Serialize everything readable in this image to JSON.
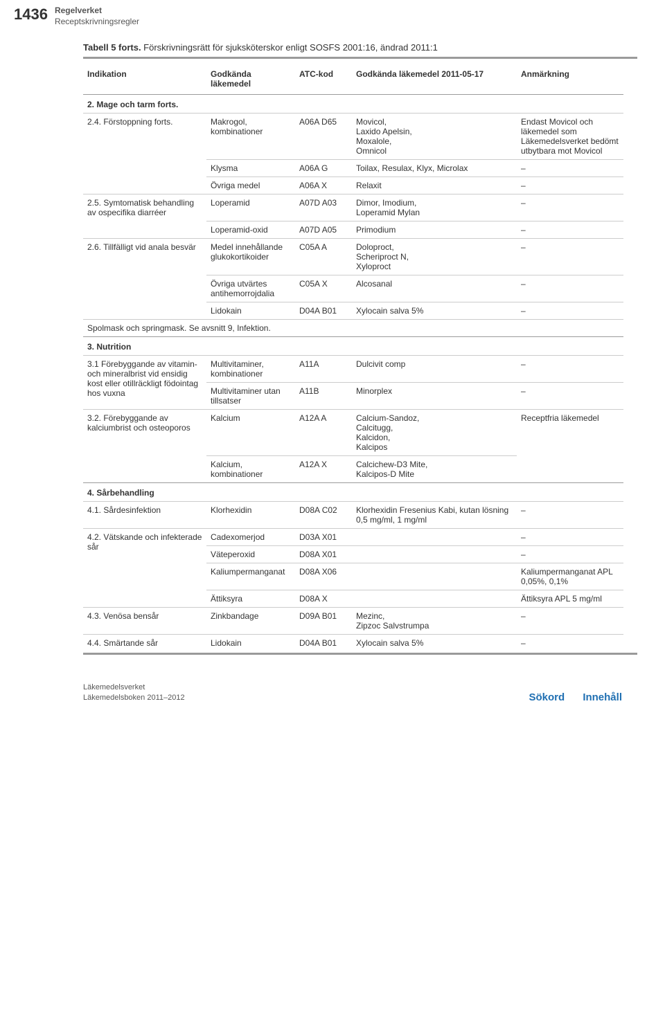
{
  "page_number": "1436",
  "header_bold": "Regelverket",
  "header_sub": "Receptskrivningsregler",
  "table_title": "Tabell 5 forts.",
  "table_subtitle": " Förskrivningsrätt för sjuksköterskor enligt SOSFS 2001:16, ändrad 2011:1",
  "columns": {
    "c1": "Indikation",
    "c2": "Godkända läkemedel",
    "c3": "ATC-kod",
    "c4": "Godkända läkemedel 2011-05-17",
    "c5": "Anmärkning"
  },
  "section_2": "2. Mage och tarm forts.",
  "r1": {
    "ind": "2.4. Förstoppning forts.",
    "med": "Makrogol, kombinationer",
    "atc": "A06A D65",
    "god": "Movicol,\nLaxido Apelsin,\nMoxalole,\nOmnicol",
    "anm": "Endast Movicol och läkemedel som Läkemedelsverket bedömt utbytbara mot Movicol"
  },
  "r2": {
    "med": "Klysma",
    "atc": "A06A G",
    "god": "Toilax, Resulax, Klyx, Microlax",
    "anm": "–"
  },
  "r3": {
    "med": "Övriga medel",
    "atc": "A06A X",
    "god": "Relaxit",
    "anm": "–"
  },
  "r4": {
    "ind": "2.5. Symtomatisk behandling av ospecifika diarréer",
    "med": "Loperamid",
    "atc": "A07D A03",
    "god": "Dimor, Imodium,\nLoperamid Mylan",
    "anm": "–"
  },
  "r5": {
    "med": "Loperamid-oxid",
    "atc": "A07D A05",
    "god": "Primodium",
    "anm": "–"
  },
  "r6": {
    "ind": "2.6. Tillfälligt vid anala besvär",
    "med": "Medel innehållande glukokortikoider",
    "atc": "C05A A",
    "god": "Doloproct,\nScheriproct N,\nXyloproct",
    "anm": "–"
  },
  "r7": {
    "med": "Övriga utvärtes antihemorrojdalia",
    "atc": "C05A X",
    "god": "Alcosanal",
    "anm": "–"
  },
  "r8": {
    "med": "Lidokain",
    "atc": "D04A B01",
    "god": "Xylocain salva 5%",
    "anm": "–"
  },
  "spolmask": "Spolmask och springmask. Se avsnitt 9, Infektion.",
  "section_3": "3. Nutrition",
  "r9": {
    "ind": "3.1 Förebyggande av vitamin- och mineralbrist vid ensidig kost eller otillräckligt födointag hos vuxna",
    "med": "Multivitaminer, kombinationer",
    "atc": "A11A",
    "god": "Dulcivit comp",
    "anm": "–"
  },
  "r10": {
    "med": "Multivitaminer utan tillsatser",
    "atc": "A11B",
    "god": "Minorplex",
    "anm": "–"
  },
  "r11": {
    "ind": "3.2. Förebyggande av kalciumbrist och osteoporos",
    "med": "Kalcium",
    "atc": "A12A A",
    "god": "Calcium-Sandoz,\nCalcitugg,\nKalcidon,\nKalcipos",
    "anm": "Receptfria läkemedel"
  },
  "r12": {
    "med": "Kalcium, kombinationer",
    "atc": "A12A X",
    "god": "Calcichew-D3 Mite,\nKalcipos-D Mite",
    "anm": ""
  },
  "section_4": "4. Sårbehandling",
  "r13": {
    "ind": "4.1. Sårdesinfektion",
    "med": "Klorhexidin",
    "atc": "D08A C02",
    "god": "Klorhexidin Fresenius Kabi, kutan lösning 0,5 mg/ml, 1 mg/ml",
    "anm": "–"
  },
  "r14": {
    "ind": "4.2. Vätskande och infekterade sår",
    "med": "Cadexomerjod",
    "atc": "D03A X01",
    "god": "",
    "anm": "–"
  },
  "r15": {
    "med": "Väteperoxid",
    "atc": "D08A X01",
    "god": "",
    "anm": "–"
  },
  "r16": {
    "med": "Kaliumpermanganat",
    "atc": "D08A X06",
    "god": "",
    "anm": "Kaliumpermanganat APL 0,05%, 0,1%"
  },
  "r17": {
    "med": "Ättiksyra",
    "atc": "D08A X",
    "god": "",
    "anm": "Ättiksyra APL 5 mg/ml"
  },
  "r18": {
    "ind": "4.3. Venösa bensår",
    "med": "Zinkbandage",
    "atc": "D09A B01",
    "god": "Mezinc,\nZipzoc Salvstrumpa",
    "anm": "–"
  },
  "r19": {
    "ind": "4.4. Smärtande sår",
    "med": "Lidokain",
    "atc": "D04A B01",
    "god": "Xylocain salva 5%",
    "anm": "–"
  },
  "footer_left_1": "Läkemedelsverket",
  "footer_left_2": "Läkemedelsboken 2011–2012",
  "footer_link_1": "Sökord",
  "footer_link_2": "Innehåll"
}
